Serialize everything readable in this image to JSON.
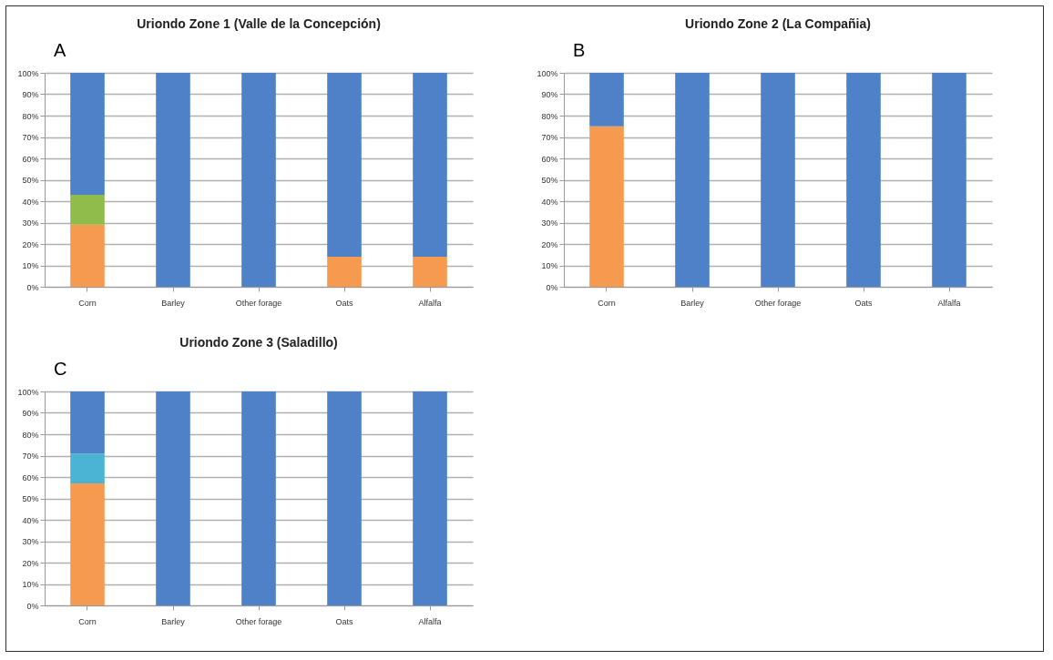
{
  "chart_data": [
    {
      "type": "bar",
      "stacked": true,
      "title": "Uriondo Zone 1 (Valle de la Concepción)",
      "annotations": [
        "A"
      ],
      "categories": [
        "Corn",
        "Barley",
        "Other forage",
        "Oats",
        "Alfalfa"
      ],
      "ylim": [
        0,
        100
      ],
      "yticks": [
        {
          "value": 0,
          "label": "0%"
        },
        {
          "value": 10,
          "label": "10%"
        },
        {
          "value": 20,
          "label": "20%"
        },
        {
          "value": 30,
          "label": "30%"
        },
        {
          "value": 40,
          "label": "40%"
        },
        {
          "value": 50,
          "label": "50%"
        },
        {
          "value": 60,
          "label": "60%"
        },
        {
          "value": 70,
          "label": "70%"
        },
        {
          "value": 80,
          "label": "80%"
        },
        {
          "value": 90,
          "label": "90%"
        },
        {
          "value": 100,
          "label": "100%"
        }
      ],
      "grid": "y",
      "legend": false,
      "series": [
        {
          "color": "#f59a4e",
          "values": [
            29,
            null,
            null,
            14,
            14
          ]
        },
        {
          "color": "#8fbc4a",
          "values": [
            14,
            null,
            null,
            null,
            null
          ]
        },
        {
          "color": "#4f81c8",
          "values": [
            57,
            100,
            100,
            86,
            86
          ]
        }
      ]
    },
    {
      "type": "bar",
      "stacked": true,
      "title": "Uriondo Zone 2 (La Compañia)",
      "annotations": [
        "B"
      ],
      "categories": [
        "Corn",
        "Barley",
        "Other forage",
        "Oats",
        "Alfalfa"
      ],
      "ylim": [
        0,
        100
      ],
      "yticks": [
        {
          "value": 0,
          "label": "0%"
        },
        {
          "value": 10,
          "label": "10%"
        },
        {
          "value": 20,
          "label": "20%"
        },
        {
          "value": 30,
          "label": "30%"
        },
        {
          "value": 40,
          "label": "40%"
        },
        {
          "value": 50,
          "label": "50%"
        },
        {
          "value": 60,
          "label": "60%"
        },
        {
          "value": 70,
          "label": "70%"
        },
        {
          "value": 80,
          "label": "80%"
        },
        {
          "value": 90,
          "label": "90%"
        },
        {
          "value": 100,
          "label": "100%"
        }
      ],
      "grid": "y",
      "legend": false,
      "series": [
        {
          "color": "#f59a4e",
          "values": [
            75,
            null,
            null,
            null,
            null
          ]
        },
        {
          "color": "#4f81c8",
          "values": [
            25,
            100,
            100,
            100,
            100
          ]
        }
      ]
    },
    {
      "type": "bar",
      "stacked": true,
      "title": "Uriondo Zone 3 (Saladillo)",
      "annotations": [
        "C"
      ],
      "categories": [
        "Corn",
        "Barley",
        "Other forage",
        "Oats",
        "Alfalfa"
      ],
      "ylim": [
        0,
        100
      ],
      "yticks": [
        {
          "value": 0,
          "label": "0%"
        },
        {
          "value": 10,
          "label": "10%"
        },
        {
          "value": 20,
          "label": "20%"
        },
        {
          "value": 30,
          "label": "30%"
        },
        {
          "value": 40,
          "label": "40%"
        },
        {
          "value": 50,
          "label": "50%"
        },
        {
          "value": 60,
          "label": "60%"
        },
        {
          "value": 70,
          "label": "70%"
        },
        {
          "value": 80,
          "label": "80%"
        },
        {
          "value": 90,
          "label": "90%"
        },
        {
          "value": 100,
          "label": "100%"
        }
      ],
      "grid": "y",
      "legend": false,
      "series": [
        {
          "color": "#f59a4e",
          "values": [
            57,
            null,
            null,
            null,
            null
          ]
        },
        {
          "color": "#4bb3d4",
          "values": [
            14,
            null,
            null,
            null,
            null
          ]
        },
        {
          "color": "#4f81c8",
          "values": [
            29,
            100,
            100,
            100,
            100
          ]
        }
      ]
    }
  ]
}
